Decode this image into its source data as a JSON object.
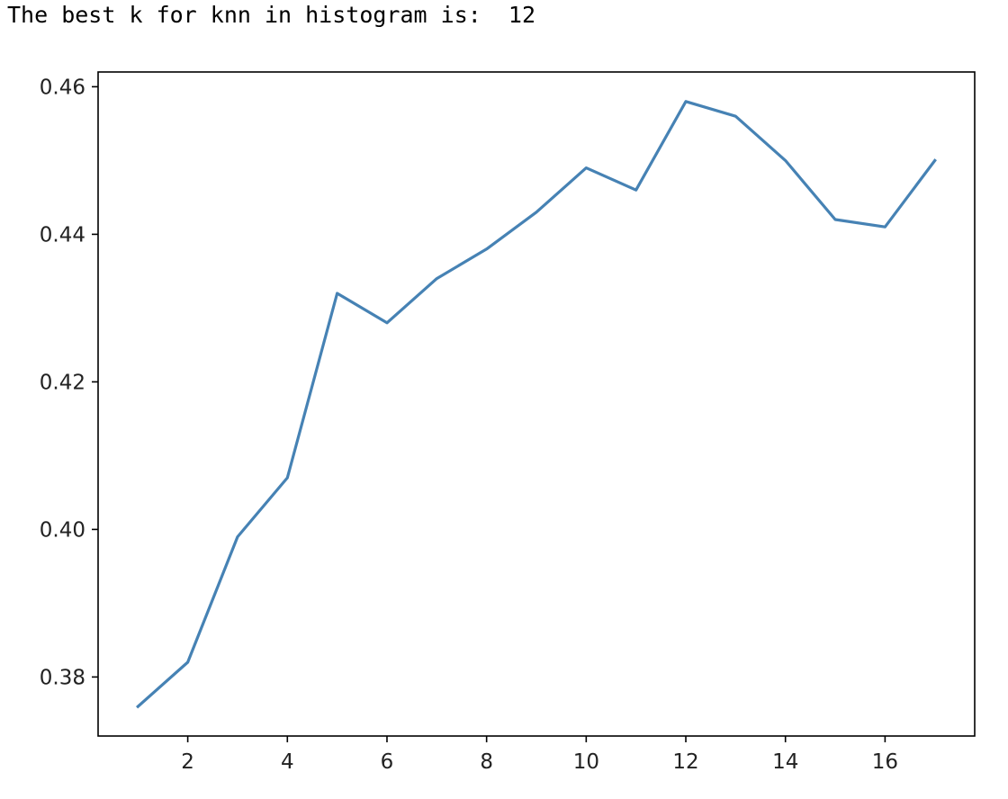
{
  "output": {
    "text": "The best k for knn in histogram is:  12"
  },
  "chart_data": {
    "type": "line",
    "title": "",
    "xlabel": "",
    "ylabel": "",
    "xlim": [
      0.2,
      17.8
    ],
    "ylim": [
      0.372,
      0.462
    ],
    "x_ticks": [
      2,
      4,
      6,
      8,
      10,
      12,
      14,
      16
    ],
    "y_ticks": [
      0.38,
      0.4,
      0.42,
      0.44,
      0.46
    ],
    "x_tick_labels": [
      "2",
      "4",
      "6",
      "8",
      "10",
      "12",
      "14",
      "16"
    ],
    "y_tick_labels": [
      "0.38",
      "0.40",
      "0.42",
      "0.44",
      "0.46"
    ],
    "grid": false,
    "series": [
      {
        "color": "#4682b4",
        "x": [
          1,
          2,
          3,
          4,
          5,
          6,
          7,
          8,
          9,
          10,
          11,
          12,
          13,
          14,
          15,
          16,
          17
        ],
        "y": [
          0.376,
          0.382,
          0.399,
          0.407,
          0.432,
          0.428,
          0.434,
          0.438,
          0.443,
          0.449,
          0.446,
          0.458,
          0.456,
          0.45,
          0.442,
          0.441,
          0.45
        ]
      }
    ]
  }
}
